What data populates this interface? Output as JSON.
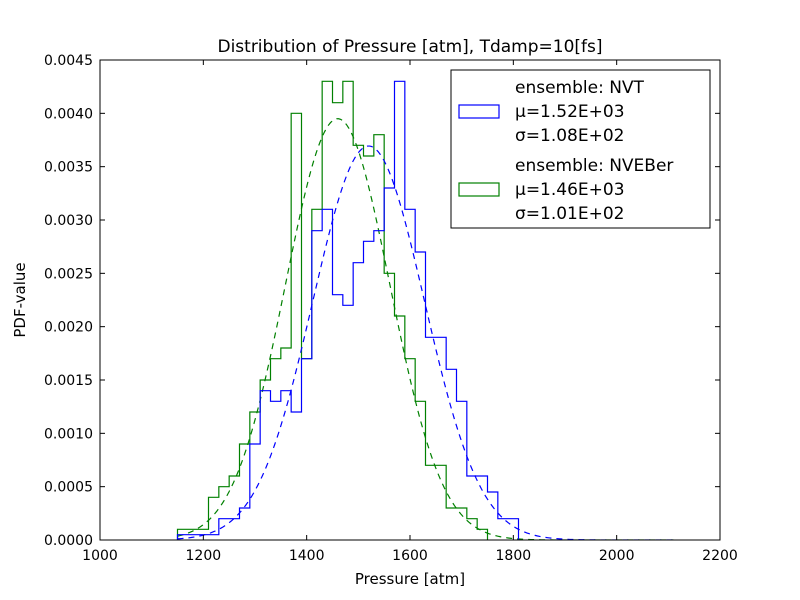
{
  "chart_data": {
    "type": "histogram",
    "title": "Distribution of Pressure [atm], Tdamp=10[fs]",
    "xlabel": "Pressure [atm]",
    "ylabel": "PDF-value",
    "xlim": [
      1000,
      2200
    ],
    "ylim": [
      0,
      0.0045
    ],
    "xticks": [
      1000,
      1200,
      1400,
      1600,
      1800,
      2000,
      2200
    ],
    "xtick_labels": [
      "1000",
      "1200",
      "1400",
      "1600",
      "1800",
      "2000",
      "2200"
    ],
    "yticks": [
      0,
      0.0005,
      0.001,
      0.0015,
      0.002,
      0.0025,
      0.003,
      0.0035,
      0.004,
      0.0045
    ],
    "ytick_labels": [
      "0.0000",
      "0.0005",
      "0.0010",
      "0.0015",
      "0.0020",
      "0.0025",
      "0.0030",
      "0.0035",
      "0.0040",
      "0.0045"
    ],
    "legend_position": "top-right",
    "fit_line": {
      "from": 1150,
      "to": 2110
    },
    "series": [
      {
        "color": "#0000ff",
        "legend_lines": [
          "ensemble: NVT",
          "μ=1.52E+03",
          "σ=1.08E+02"
        ],
        "mu": 1520,
        "sigma": 108,
        "edges": [
          1150,
          1170,
          1190,
          1210,
          1230,
          1250,
          1270,
          1290,
          1310,
          1330,
          1350,
          1370,
          1390,
          1410,
          1430,
          1450,
          1470,
          1490,
          1510,
          1530,
          1550,
          1570,
          1590,
          1610,
          1630,
          1650,
          1670,
          1690,
          1710,
          1730,
          1750,
          1770,
          1790,
          1810
        ],
        "heights": [
          5e-05,
          5e-05,
          5e-05,
          5e-05,
          0.0002,
          0.0002,
          0.0003,
          0.0009,
          0.0014,
          0.0013,
          0.0014,
          0.0012,
          0.0017,
          0.0029,
          0.0031,
          0.0023,
          0.0022,
          0.0026,
          0.0028,
          0.0029,
          0.0033,
          0.0043,
          0.0031,
          0.0027,
          0.0019,
          0.0019,
          0.0016,
          0.0013,
          0.0006,
          0.0006,
          0.00045,
          0.0002,
          0.0002
        ]
      },
      {
        "color": "#008000",
        "legend_lines": [
          "ensemble: NVEBer",
          "μ=1.46E+03",
          "σ=1.01E+02"
        ],
        "mu": 1460,
        "sigma": 101,
        "edges": [
          1150,
          1170,
          1190,
          1210,
          1230,
          1250,
          1270,
          1290,
          1310,
          1330,
          1350,
          1370,
          1390,
          1410,
          1430,
          1450,
          1470,
          1490,
          1510,
          1530,
          1550,
          1570,
          1590,
          1610,
          1630,
          1650,
          1670,
          1690,
          1710,
          1730,
          1750
        ],
        "heights": [
          0.0001,
          0.0001,
          0.0001,
          0.0004,
          0.0005,
          0.0006,
          0.0009,
          0.0012,
          0.0015,
          0.0017,
          0.0018,
          0.004,
          0.0017,
          0.0031,
          0.0043,
          0.0041,
          0.0043,
          0.0037,
          0.0036,
          0.0038,
          0.0025,
          0.0021,
          0.0017,
          0.0013,
          0.0007,
          0.0007,
          0.0003,
          0.0003,
          0.0002,
          0.0001
        ]
      }
    ]
  }
}
